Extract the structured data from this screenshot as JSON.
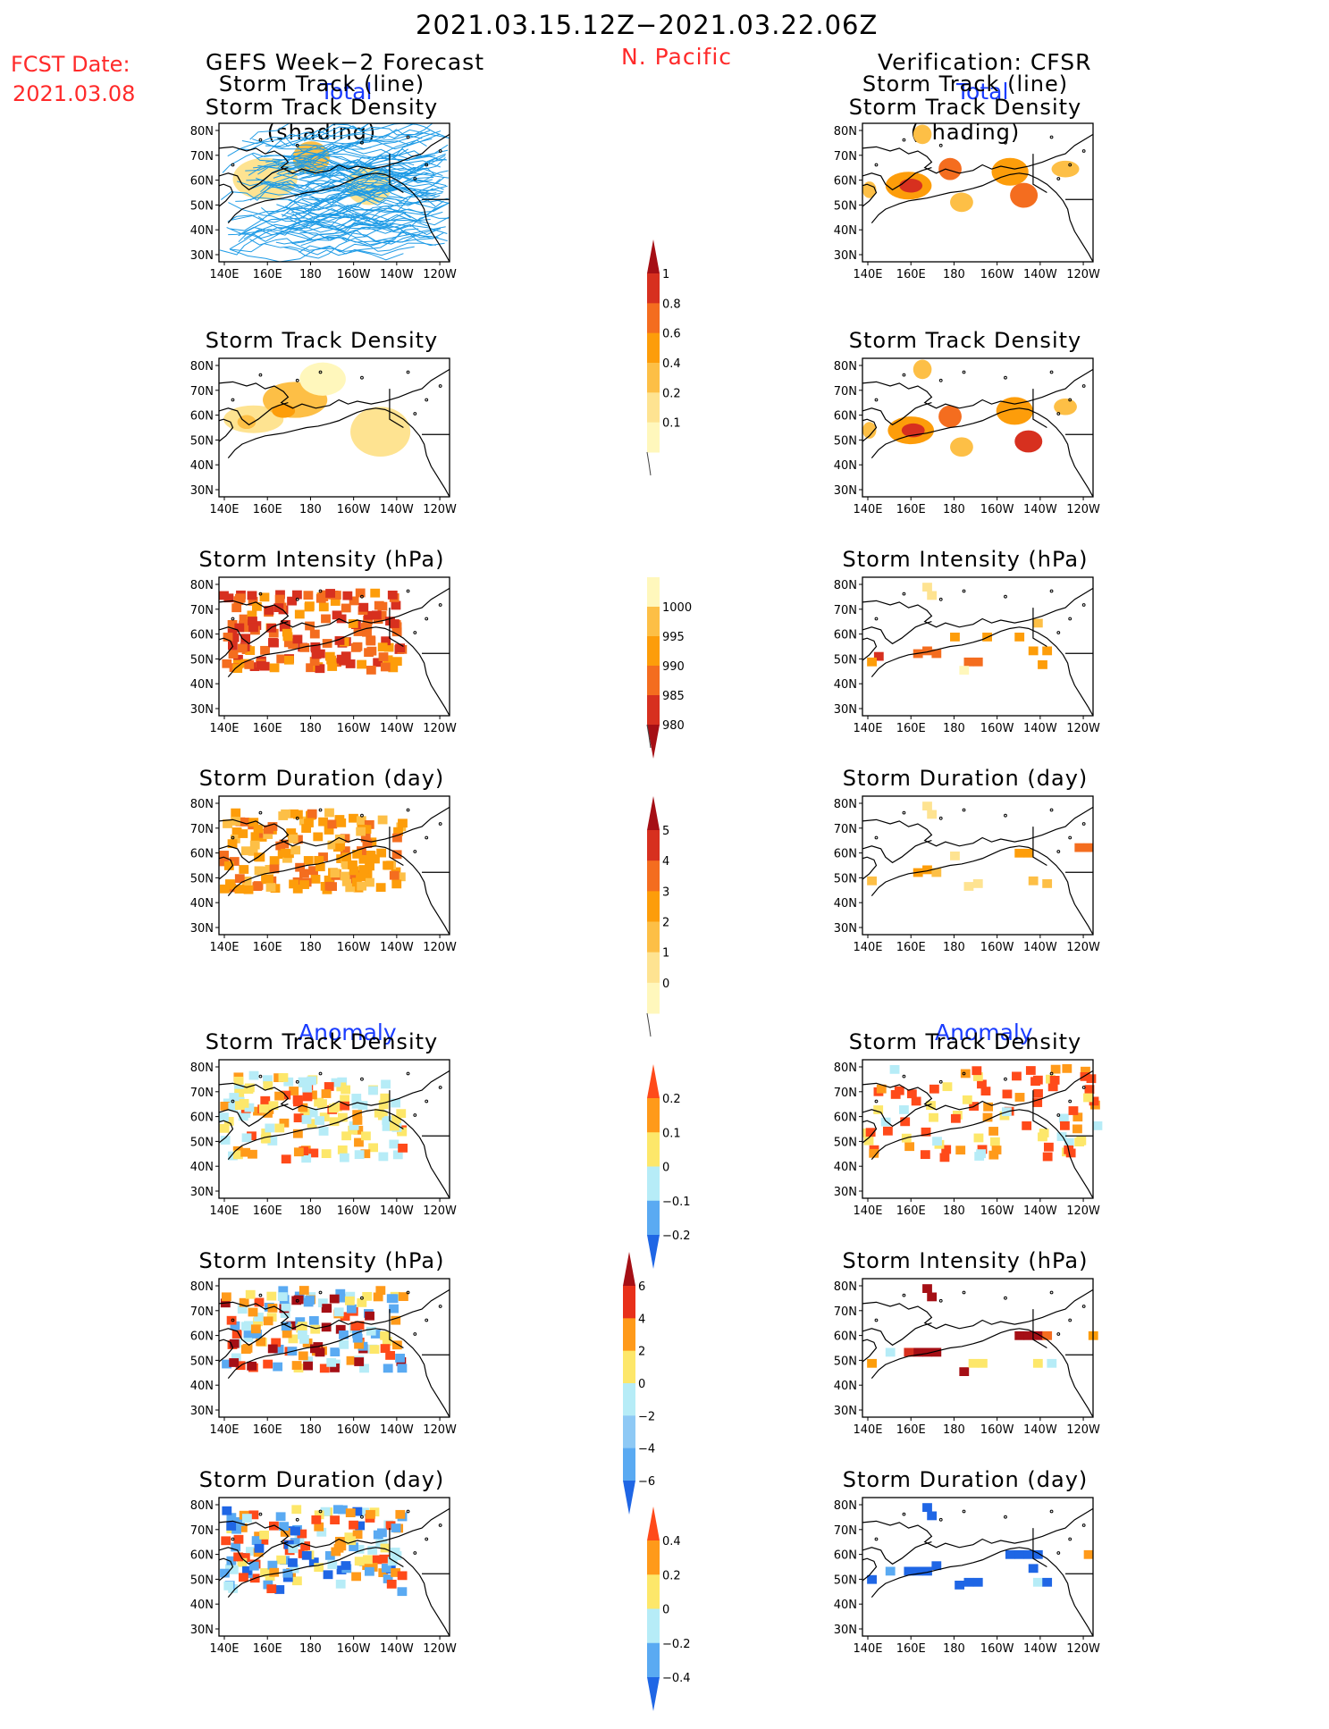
{
  "header": {
    "period": "2021.03.15.12Z−2021.03.22.06Z",
    "fcst_label": "FCST Date:",
    "fcst_date": "2021.03.08",
    "left_title": "GEFS Week−2 Forecast",
    "region": "N. Pacific",
    "right_title": "Verification: CFSR"
  },
  "sections": {
    "total_left": "Total",
    "total_right": "Total",
    "anomaly_left": "Anomaly",
    "anomaly_right": "Anomaly"
  },
  "panel_titles": {
    "track_line_1": "Storm Track (line)",
    "track_line_2": "Storm Track Density (shading)",
    "density": "Storm Track Density",
    "intensity": "Storm Intensity (hPa)",
    "duration": "Storm Duration (day)"
  },
  "axes": {
    "lat_labels": [
      "80N",
      "70N",
      "60N",
      "50N",
      "40N",
      "30N"
    ],
    "lon_labels": [
      "140E",
      "160E",
      "180",
      "160W",
      "140W",
      "120W"
    ]
  },
  "colorbars": {
    "density_total": {
      "labels": [
        "1",
        "0.8",
        "0.6",
        "0.4",
        "0.2",
        "0.1"
      ],
      "colors": [
        "#a50f15",
        "#d7301f",
        "#f46d1f",
        "#fd9d0a",
        "#fdbf46",
        "#fee391",
        "#fff7bc"
      ]
    },
    "intensity_total": {
      "labels": [
        "1000",
        "995",
        "990",
        "985",
        "980"
      ],
      "colors": [
        "#fff7bc",
        "#fdbf46",
        "#fd9d0a",
        "#f46d1f",
        "#d7301f",
        "#a50f15"
      ]
    },
    "duration_total": {
      "labels": [
        "5",
        "4",
        "3",
        "2",
        "1",
        "0"
      ],
      "colors": [
        "#a50f15",
        "#d7301f",
        "#f46d1f",
        "#fd9d0a",
        "#fdbf46",
        "#fee391",
        "#fff7bc"
      ]
    },
    "density_anom": {
      "labels": [
        "0.2",
        "0.1",
        "0",
        "−0.1",
        "−0.2"
      ],
      "colors": [
        "#ff4a1a",
        "#ff9a1a",
        "#fde76a",
        "#b6ecf7",
        "#5aaaf2",
        "#1f66e5"
      ]
    },
    "intensity_anom": {
      "labels": [
        "6",
        "4",
        "2",
        "0",
        "−2",
        "−4",
        "−6"
      ],
      "colors": [
        "#a50f15",
        "#e8301a",
        "#ff9a1a",
        "#fde76a",
        "#b6ecf7",
        "#8ec9f5",
        "#5aaaf2",
        "#1f66e5"
      ]
    },
    "duration_anom": {
      "labels": [
        "0.4",
        "0.2",
        "0",
        "−0.2",
        "−0.4"
      ],
      "colors": [
        "#ff4a1a",
        "#ff9a1a",
        "#fde76a",
        "#b6ecf7",
        "#5aaaf2",
        "#1f66e5"
      ]
    }
  },
  "fields": {
    "track_color": "#1e9be6",
    "land_outline": "#000000"
  }
}
